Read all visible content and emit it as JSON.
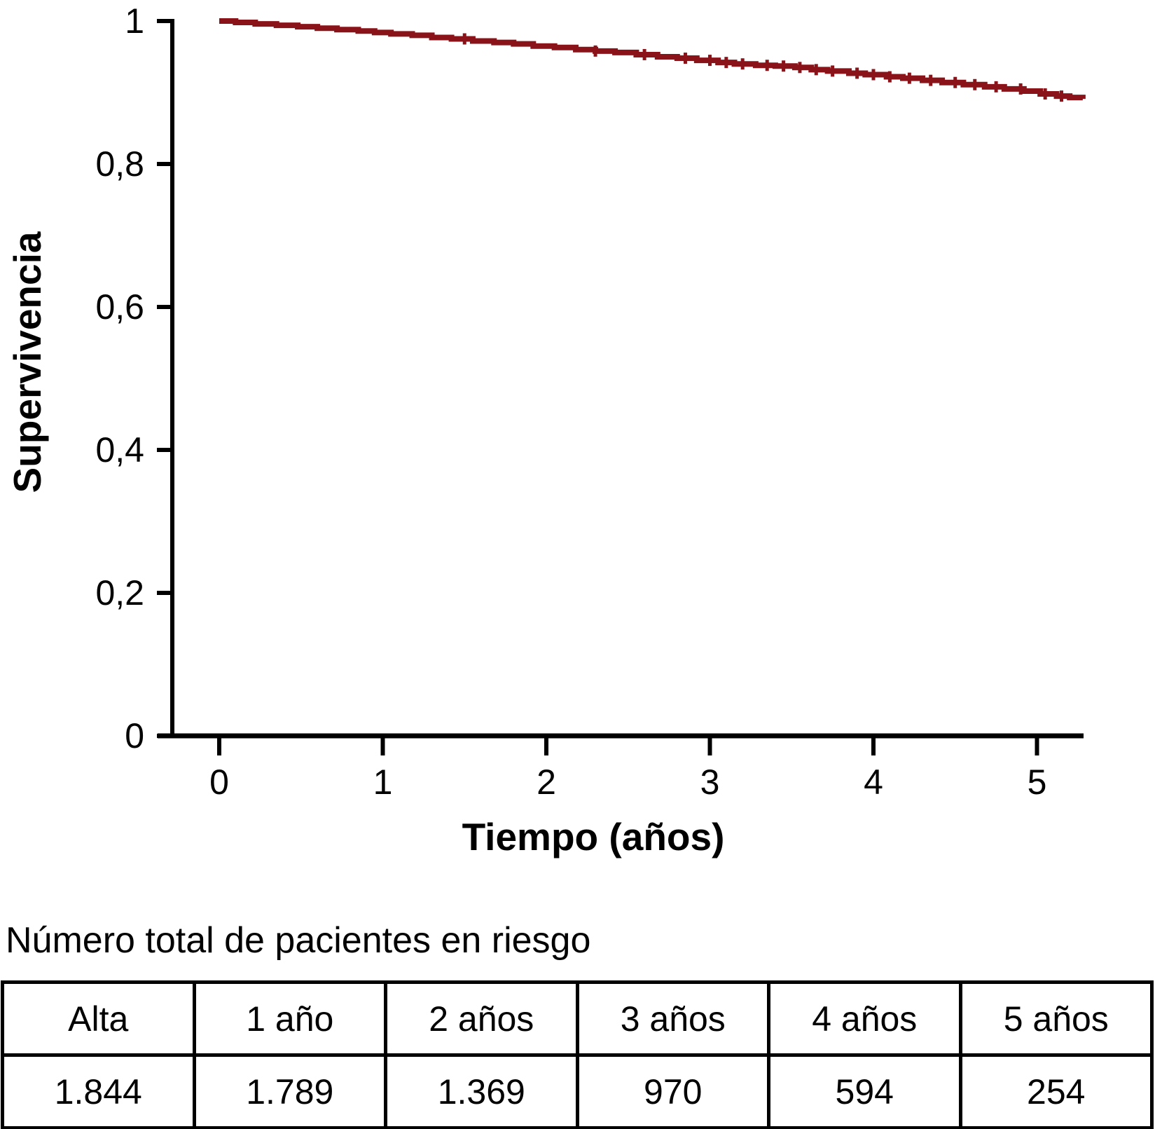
{
  "figure": {
    "background": "#ffffff",
    "risk_table_title": "Número total de pacientes en riesgo"
  },
  "chart_data": {
    "type": "line",
    "subtype": "kaplan-meier-step-curve",
    "title": "",
    "xlabel": "Tiempo (años)",
    "ylabel": "Supervivencia",
    "xlim": [
      0,
      5.3
    ],
    "ylim": [
      0,
      1
    ],
    "x_ticks": [
      0,
      1,
      2,
      3,
      4,
      5
    ],
    "x_tick_labels": [
      "0",
      "1",
      "2",
      "3",
      "4",
      "5"
    ],
    "y_ticks": [
      0,
      0.2,
      0.4,
      0.6,
      0.8,
      1
    ],
    "y_tick_labels": [
      "0",
      "0,2",
      "0,4",
      "0,6",
      "0,8",
      "1"
    ],
    "grid": false,
    "legend": "none",
    "axis_color": "#000000",
    "series": [
      {
        "name": "Supervivencia",
        "color": "#8a1319",
        "line_width": 8,
        "step": true,
        "points": [
          [
            0.0,
            1.0
          ],
          [
            0.1,
            0.998
          ],
          [
            0.22,
            0.996
          ],
          [
            0.35,
            0.994
          ],
          [
            0.48,
            0.992
          ],
          [
            0.6,
            0.99
          ],
          [
            0.72,
            0.988
          ],
          [
            0.85,
            0.986
          ],
          [
            0.95,
            0.984
          ],
          [
            1.05,
            0.982
          ],
          [
            1.18,
            0.98
          ],
          [
            1.3,
            0.977
          ],
          [
            1.42,
            0.975
          ],
          [
            1.55,
            0.972
          ],
          [
            1.68,
            0.97
          ],
          [
            1.8,
            0.968
          ],
          [
            1.92,
            0.965
          ],
          [
            2.05,
            0.963
          ],
          [
            2.18,
            0.96
          ],
          [
            2.3,
            0.958
          ],
          [
            2.42,
            0.956
          ],
          [
            2.55,
            0.953
          ],
          [
            2.68,
            0.95
          ],
          [
            2.8,
            0.948
          ],
          [
            2.92,
            0.945
          ],
          [
            3.05,
            0.942
          ],
          [
            3.15,
            0.94
          ],
          [
            3.28,
            0.938
          ],
          [
            3.4,
            0.937
          ],
          [
            3.52,
            0.935
          ],
          [
            3.62,
            0.932
          ],
          [
            3.72,
            0.93
          ],
          [
            3.85,
            0.927
          ],
          [
            3.95,
            0.925
          ],
          [
            4.08,
            0.922
          ],
          [
            4.18,
            0.92
          ],
          [
            4.3,
            0.917
          ],
          [
            4.42,
            0.914
          ],
          [
            4.55,
            0.911
          ],
          [
            4.68,
            0.908
          ],
          [
            4.8,
            0.905
          ],
          [
            4.92,
            0.902
          ],
          [
            5.02,
            0.898
          ],
          [
            5.12,
            0.895
          ],
          [
            5.2,
            0.893
          ],
          [
            5.28,
            0.891
          ]
        ],
        "censor_times": [
          1.5,
          2.3,
          2.6,
          2.85,
          3.0,
          3.1,
          3.2,
          3.35,
          3.45,
          3.55,
          3.65,
          3.75,
          3.9,
          4.0,
          4.1,
          4.22,
          4.35,
          4.5,
          4.62,
          4.75,
          4.9,
          5.05,
          5.15
        ]
      }
    ]
  },
  "risk_table": {
    "headers": [
      "Alta",
      "1 año",
      "2 años",
      "3 años",
      "4 años",
      "5 años"
    ],
    "values": [
      "1.844",
      "1.789",
      "1.369",
      "970",
      "594",
      "254"
    ]
  }
}
